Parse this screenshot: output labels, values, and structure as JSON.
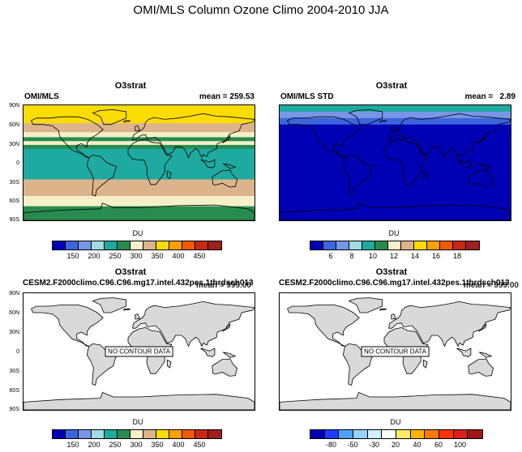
{
  "figure_title": "OMI/MLS Column Ozone Climo 2004-2010 JJA",
  "lat_ticks": [
    "90N",
    "60N",
    "30N",
    "0",
    "30S",
    "60S",
    "90S"
  ],
  "colorbar_title": "DU",
  "colors": {
    "du_levels": [
      "#0000b4",
      "#3c64dc",
      "#7896e6",
      "#a0dce6",
      "#1eaaa0",
      "#288c50",
      "#f5f0c8",
      "#dcb48c",
      "#fadc00",
      "#faa000",
      "#f05a00",
      "#c82814",
      "#a01e1e"
    ],
    "diff_levels": [
      "#0000b4",
      "#1e3cff",
      "#50a0ff",
      "#96d2ff",
      "#d2f0ff",
      "#ffffff",
      "#ffeb64",
      "#ffb400",
      "#ff7800",
      "#ff3200",
      "#dc1e14",
      "#a01414"
    ],
    "land": "#d9d9d9"
  },
  "chart_data": [
    {
      "type": "heatmap",
      "title": "O3strat",
      "left_string": "OMI/MLS",
      "right_string": "mean = 259.53",
      "colorbar_labels": [
        "150",
        "200",
        "250",
        "300",
        "350",
        "400",
        "450"
      ],
      "bands": [
        {
          "lat_top": 90,
          "lat_bottom": 62,
          "color_index": 8
        },
        {
          "lat_top": 62,
          "lat_bottom": 48,
          "color_index": 7
        },
        {
          "lat_top": 48,
          "lat_bottom": 40,
          "color_index": 6
        },
        {
          "lat_top": 40,
          "lat_bottom": 34,
          "color_index": 5
        },
        {
          "lat_top": 34,
          "lat_bottom": 28,
          "color_index": 6
        },
        {
          "lat_top": 28,
          "lat_bottom": 22,
          "color_index": 5
        },
        {
          "lat_top": 22,
          "lat_bottom": 12,
          "color_index": 4
        },
        {
          "lat_top": 12,
          "lat_bottom": -14,
          "color_index": 4
        },
        {
          "lat_top": -14,
          "lat_bottom": -26,
          "color_index": 4
        },
        {
          "lat_top": -26,
          "lat_bottom": -52,
          "color_index": 7
        },
        {
          "lat_top": -52,
          "lat_bottom": -68,
          "color_index": 6
        },
        {
          "lat_top": -68,
          "lat_bottom": -90,
          "color_index": 5
        }
      ]
    },
    {
      "type": "heatmap",
      "title": "O3strat",
      "left_string": "OMI/MLS STD",
      "right_string": "mean =   2.89",
      "colorbar_labels": [
        "6",
        "8",
        "10",
        "12",
        "14",
        "16",
        "18"
      ],
      "bands": [
        {
          "lat_top": 90,
          "lat_bottom": 80,
          "color_index": 4
        },
        {
          "lat_top": 80,
          "lat_bottom": 70,
          "color_index": 2
        },
        {
          "lat_top": 70,
          "lat_bottom": 60,
          "color_index": 1
        },
        {
          "lat_top": 60,
          "lat_bottom": -90,
          "color_index": 0
        }
      ]
    },
    {
      "type": "heatmap",
      "title": "O3strat",
      "left_string": "CESM2.F2000climo.C96.C96.mg17.intel.432pes.1thrdsch013",
      "right_string": "mean = 999.00",
      "annotation": "NO CONTOUR DATA",
      "colorbar_labels": [
        "150",
        "200",
        "250",
        "300",
        "350",
        "400",
        "450"
      ]
    },
    {
      "type": "heatmap",
      "title": "O3strat",
      "left_string": "CESM2.F2000climo.C96.C96.mg17.intel.432pes.1thrdsch013",
      "right_string": "mean = 999.00",
      "annotation": "NO CONTOUR DATA",
      "colorbar_labels": [
        "-80",
        "-50",
        "-30",
        "20",
        "40",
        "60",
        "100"
      ]
    }
  ]
}
